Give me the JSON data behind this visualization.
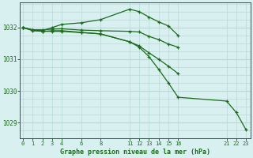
{
  "title": "Graphe pression niveau de la mer (hPa)",
  "bg_color": "#d8f0f0",
  "grid_color": "#b8d8d8",
  "line_color": "#1a6b1a",
  "marker": "+",
  "xtick_labels": [
    "0",
    "1",
    "2",
    "3",
    "4",
    "6",
    "8",
    "11",
    "12",
    "13",
    "14",
    "15",
    "16",
    "21",
    "22",
    "23"
  ],
  "xtick_pos": [
    0,
    1,
    2,
    3,
    4,
    6,
    8,
    11,
    12,
    13,
    14,
    15,
    16,
    21,
    22,
    23
  ],
  "yticks": [
    1029,
    1030,
    1031,
    1032
  ],
  "ylim": [
    1028.5,
    1032.8
  ],
  "xlim": [
    -0.3,
    23.5
  ],
  "series": [
    {
      "x": [
        0,
        1,
        2,
        3,
        4,
        6,
        8,
        11,
        12,
        13,
        14,
        15,
        16
      ],
      "y": [
        1032.0,
        1031.93,
        1031.93,
        1031.95,
        1031.96,
        1031.92,
        1031.9,
        1031.88,
        1031.86,
        1031.72,
        1031.62,
        1031.48,
        1031.38
      ]
    },
    {
      "x": [
        0,
        1,
        2,
        3,
        4,
        6,
        8,
        11,
        12,
        13,
        14,
        15,
        16
      ],
      "y": [
        1032.0,
        1031.92,
        1031.9,
        1032.0,
        1032.1,
        1032.15,
        1032.25,
        1032.58,
        1032.5,
        1032.33,
        1032.18,
        1032.05,
        1031.75
      ]
    },
    {
      "x": [
        0,
        1,
        2,
        3,
        4,
        6,
        8,
        11,
        12,
        13,
        14,
        15,
        16
      ],
      "y": [
        1032.0,
        1031.9,
        1031.88,
        1031.88,
        1031.88,
        1031.84,
        1031.8,
        1031.55,
        1031.42,
        1031.2,
        1031.0,
        1030.78,
        1030.55
      ]
    },
    {
      "x": [
        0,
        1,
        2,
        3,
        4,
        6,
        8,
        11,
        12,
        13,
        14,
        15,
        16,
        21,
        22,
        23
      ],
      "y": [
        1032.0,
        1031.92,
        1031.88,
        1031.9,
        1031.9,
        1031.85,
        1031.8,
        1031.55,
        1031.38,
        1031.08,
        1030.68,
        1030.25,
        1029.8,
        1029.68,
        1029.32,
        1028.78
      ]
    }
  ]
}
